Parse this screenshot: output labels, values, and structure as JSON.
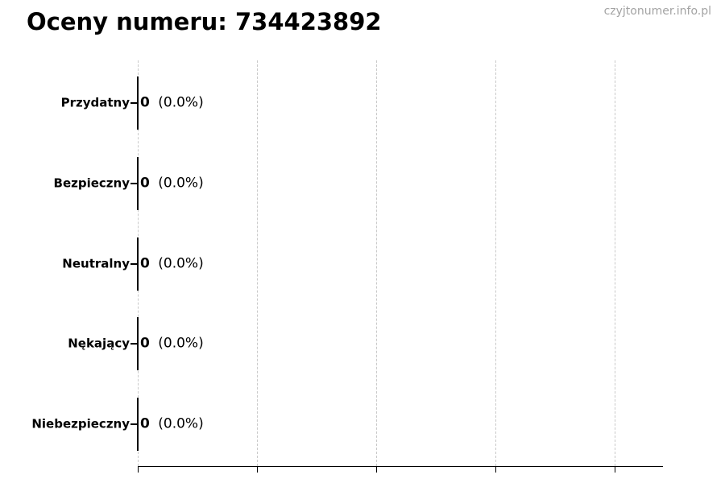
{
  "page": {
    "watermark": "czyjtonumer.info.pl"
  },
  "colors": {
    "background": "#ffffff",
    "text": "#000000",
    "axis": "#000000",
    "grid": "#c9c9c9",
    "watermark": "#a3a3a3"
  },
  "chart_data": {
    "type": "bar",
    "orientation": "horizontal",
    "title": "Oceny numeru: 734423892",
    "categories": [
      "Przydatny",
      "Bezpieczny",
      "Neutralny",
      "Nękający",
      "Niebezpieczny"
    ],
    "values": [
      0,
      0,
      0,
      0,
      0
    ],
    "counts": [
      "0",
      "0",
      "0",
      "0",
      "0"
    ],
    "percentages": [
      0.0,
      0.0,
      0.0,
      0.0,
      0.0
    ],
    "percent_labels": [
      "(0.0%)",
      "(0.0%)",
      "(0.0%)",
      "(0.0%)",
      "(0.0%)"
    ],
    "bar_annotation_format": "count (percent)",
    "xlabel": "",
    "ylabel": "",
    "grid": true,
    "grid_style": "vertical-dashed",
    "legend": false,
    "x_tick_count": 5,
    "x_tick_labels_visible": false
  }
}
